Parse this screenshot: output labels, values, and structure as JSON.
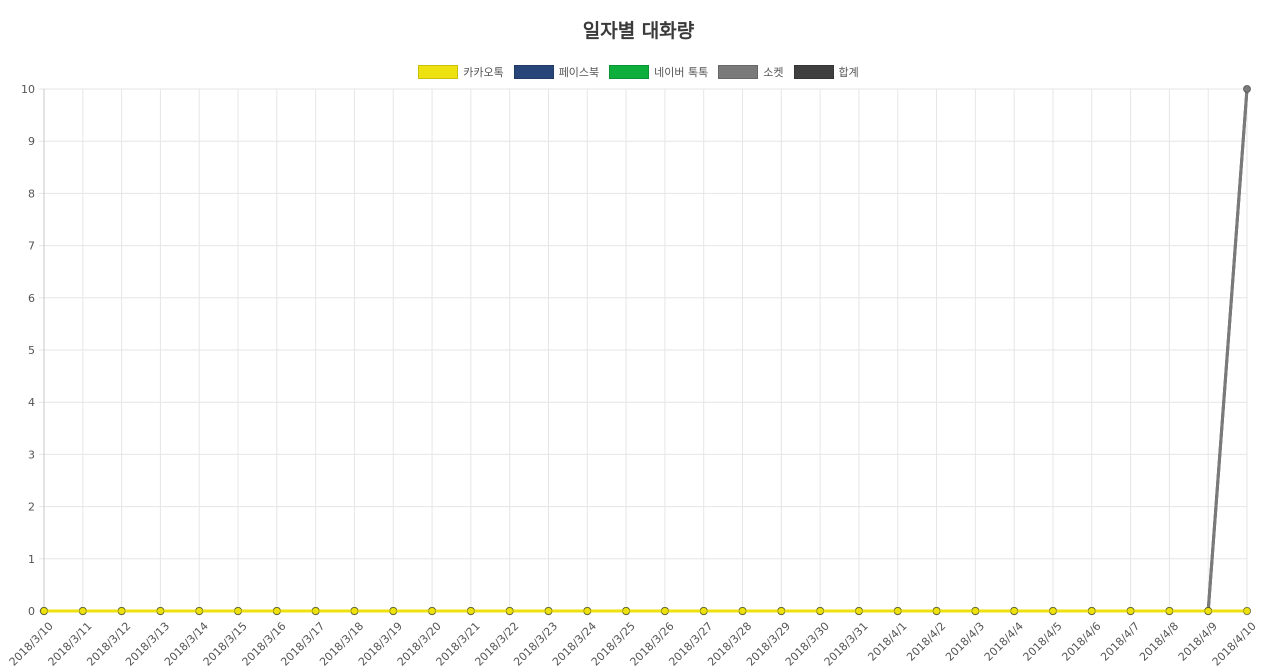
{
  "chart_data": {
    "type": "line",
    "title": "일자별 대화량",
    "xlabel": "",
    "ylabel": "",
    "ylim": [
      0,
      10
    ],
    "yticks": [
      0,
      1,
      2,
      3,
      4,
      5,
      6,
      7,
      8,
      9,
      10
    ],
    "grid": true,
    "legend_position": "top",
    "x": [
      "2018/3/10",
      "2018/3/11",
      "2018/3/12",
      "2018/3/13",
      "2018/3/14",
      "2018/3/15",
      "2018/3/16",
      "2018/3/17",
      "2018/3/18",
      "2018/3/19",
      "2018/3/20",
      "2018/3/21",
      "2018/3/22",
      "2018/3/23",
      "2018/3/24",
      "2018/3/25",
      "2018/3/26",
      "2018/3/27",
      "2018/3/28",
      "2018/3/29",
      "2018/3/30",
      "2018/3/31",
      "2018/4/1",
      "2018/4/2",
      "2018/4/3",
      "2018/4/4",
      "2018/4/5",
      "2018/4/6",
      "2018/4/7",
      "2018/4/8",
      "2018/4/9",
      "2018/4/10"
    ],
    "series": [
      {
        "name": "카카오톡",
        "color": "#ede20f",
        "values": [
          0,
          0,
          0,
          0,
          0,
          0,
          0,
          0,
          0,
          0,
          0,
          0,
          0,
          0,
          0,
          0,
          0,
          0,
          0,
          0,
          0,
          0,
          0,
          0,
          0,
          0,
          0,
          0,
          0,
          0,
          0,
          0
        ]
      },
      {
        "name": "페이스북",
        "color": "#28457a",
        "values": [
          0,
          0,
          0,
          0,
          0,
          0,
          0,
          0,
          0,
          0,
          0,
          0,
          0,
          0,
          0,
          0,
          0,
          0,
          0,
          0,
          0,
          0,
          0,
          0,
          0,
          0,
          0,
          0,
          0,
          0,
          0,
          0
        ]
      },
      {
        "name": "네이버 톡톡",
        "color": "#0eae3d",
        "values": [
          0,
          0,
          0,
          0,
          0,
          0,
          0,
          0,
          0,
          0,
          0,
          0,
          0,
          0,
          0,
          0,
          0,
          0,
          0,
          0,
          0,
          0,
          0,
          0,
          0,
          0,
          0,
          0,
          0,
          0,
          0,
          0
        ]
      },
      {
        "name": "소켓",
        "color": "#7a7a7a",
        "values": [
          0,
          0,
          0,
          0,
          0,
          0,
          0,
          0,
          0,
          0,
          0,
          0,
          0,
          0,
          0,
          0,
          0,
          0,
          0,
          0,
          0,
          0,
          0,
          0,
          0,
          0,
          0,
          0,
          0,
          0,
          0,
          10
        ]
      },
      {
        "name": "합계",
        "color": "#3f3f3f",
        "values": [
          0,
          0,
          0,
          0,
          0,
          0,
          0,
          0,
          0,
          0,
          0,
          0,
          0,
          0,
          0,
          0,
          0,
          0,
          0,
          0,
          0,
          0,
          0,
          0,
          0,
          0,
          0,
          0,
          0,
          0,
          0,
          10
        ]
      }
    ]
  }
}
